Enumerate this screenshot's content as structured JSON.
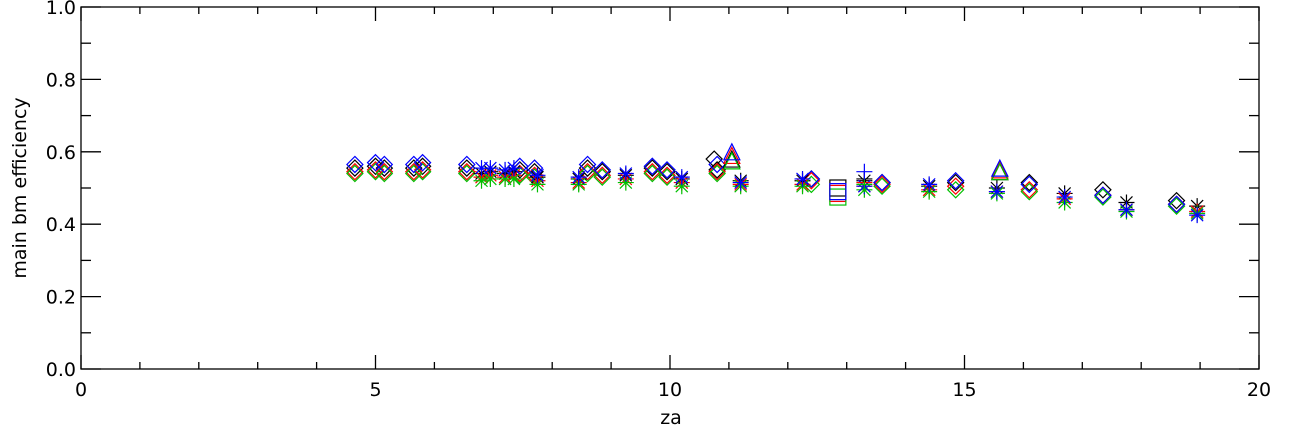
{
  "chart_data": {
    "type": "scatter",
    "title": "",
    "xlabel": "za",
    "ylabel": "main bm efficiency",
    "xlim": [
      0,
      20
    ],
    "ylim": [
      0.0,
      1.0
    ],
    "x_ticks": [
      0,
      5,
      10,
      15,
      20
    ],
    "x_tick_labels": [
      "0",
      "5",
      "10",
      "15",
      "20"
    ],
    "y_ticks": [
      0.0,
      0.2,
      0.4,
      0.6,
      0.8,
      1.0
    ],
    "y_tick_labels": [
      "0.0",
      "0.2",
      "0.4",
      "0.6",
      "0.8",
      "1.0"
    ],
    "grid": false,
    "colors": {
      "black": "#000000",
      "red": "#ff0000",
      "green": "#00c000",
      "blue": "#0000ff"
    },
    "series": [
      {
        "color": "black",
        "marker": "diamond",
        "x": [
          4.65,
          5.0,
          5.15,
          5.65,
          5.8,
          6.55,
          7.45,
          7.7,
          8.6,
          8.85,
          9.7,
          9.95,
          10.75,
          10.8,
          12.4,
          13.6,
          14.85,
          16.1,
          17.35,
          18.6
        ],
        "y": [
          0.555,
          0.56,
          0.555,
          0.555,
          0.56,
          0.555,
          0.55,
          0.545,
          0.555,
          0.545,
          0.555,
          0.545,
          0.58,
          0.55,
          0.525,
          0.515,
          0.515,
          0.515,
          0.495,
          0.465
        ]
      },
      {
        "color": "red",
        "marker": "diamond",
        "x": [
          4.65,
          5.0,
          5.15,
          5.65,
          5.8,
          6.55,
          7.45,
          7.7,
          8.6,
          8.85,
          9.7,
          9.95,
          10.8,
          12.4,
          13.6,
          14.85,
          16.1,
          17.35,
          18.6
        ],
        "y": [
          0.545,
          0.55,
          0.545,
          0.545,
          0.55,
          0.545,
          0.54,
          0.535,
          0.545,
          0.535,
          0.545,
          0.535,
          0.545,
          0.52,
          0.51,
          0.505,
          0.495,
          0.48,
          0.455
        ]
      },
      {
        "color": "green",
        "marker": "diamond",
        "x": [
          4.65,
          5.0,
          5.15,
          5.65,
          5.8,
          6.55,
          7.45,
          7.7,
          8.6,
          8.85,
          9.7,
          9.95,
          10.8,
          12.4,
          13.6,
          14.85,
          16.1,
          17.35,
          18.6
        ],
        "y": [
          0.54,
          0.545,
          0.54,
          0.54,
          0.545,
          0.54,
          0.535,
          0.53,
          0.54,
          0.53,
          0.54,
          0.53,
          0.54,
          0.51,
          0.505,
          0.495,
          0.49,
          0.475,
          0.45
        ]
      },
      {
        "color": "blue",
        "marker": "diamond",
        "x": [
          4.65,
          5.0,
          5.15,
          5.65,
          5.8,
          6.55,
          7.45,
          7.7,
          8.6,
          8.85,
          9.7,
          9.95,
          10.8,
          12.4,
          13.6,
          14.85,
          16.1,
          17.35,
          18.6
        ],
        "y": [
          0.565,
          0.57,
          0.565,
          0.565,
          0.57,
          0.565,
          0.56,
          0.555,
          0.565,
          0.55,
          0.56,
          0.55,
          0.565,
          0.525,
          0.515,
          0.52,
          0.51,
          0.48,
          0.455
        ]
      },
      {
        "color": "black",
        "marker": "asterisk",
        "x": [
          6.8,
          6.95,
          7.2,
          7.35,
          7.75,
          8.45,
          9.25,
          10.2,
          11.2,
          12.25,
          13.3,
          14.4,
          15.55,
          16.7,
          17.75,
          18.95
        ],
        "y": [
          0.54,
          0.545,
          0.54,
          0.545,
          0.53,
          0.525,
          0.535,
          0.525,
          0.52,
          0.52,
          0.52,
          0.505,
          0.5,
          0.485,
          0.46,
          0.45
        ]
      },
      {
        "color": "red",
        "marker": "asterisk",
        "x": [
          6.8,
          6.95,
          7.2,
          7.35,
          7.75,
          8.45,
          9.25,
          10.2,
          11.2,
          12.25,
          13.3,
          14.4,
          15.55,
          16.7,
          17.75,
          18.95
        ],
        "y": [
          0.53,
          0.535,
          0.53,
          0.535,
          0.52,
          0.515,
          0.525,
          0.515,
          0.51,
          0.51,
          0.505,
          0.495,
          0.49,
          0.47,
          0.44,
          0.435
        ]
      },
      {
        "color": "green",
        "marker": "asterisk",
        "x": [
          6.8,
          6.95,
          7.2,
          7.35,
          7.75,
          8.45,
          9.25,
          10.2,
          11.2,
          12.25,
          13.3,
          14.4,
          15.55,
          16.7,
          17.75,
          18.95
        ],
        "y": [
          0.52,
          0.525,
          0.525,
          0.525,
          0.51,
          0.51,
          0.515,
          0.505,
          0.505,
          0.505,
          0.495,
          0.49,
          0.485,
          0.46,
          0.435,
          0.43
        ]
      },
      {
        "color": "blue",
        "marker": "asterisk",
        "x": [
          6.8,
          6.95,
          7.2,
          7.35,
          7.75,
          8.45,
          9.25,
          10.2,
          11.2,
          12.25,
          13.3,
          14.4,
          15.55,
          16.7,
          17.75,
          18.95
        ],
        "y": [
          0.555,
          0.555,
          0.55,
          0.555,
          0.535,
          0.53,
          0.54,
          0.53,
          0.515,
          0.525,
          0.505,
          0.51,
          0.49,
          0.475,
          0.44,
          0.425
        ]
      },
      {
        "color": "black",
        "marker": "square",
        "x": [
          12.85
        ],
        "y": [
          0.5
        ]
      },
      {
        "color": "red",
        "marker": "square",
        "x": [
          12.85
        ],
        "y": [
          0.485
        ]
      },
      {
        "color": "green",
        "marker": "square",
        "x": [
          12.85
        ],
        "y": [
          0.475
        ]
      },
      {
        "color": "blue",
        "marker": "square",
        "x": [
          12.85
        ],
        "y": [
          0.49
        ]
      },
      {
        "color": "black",
        "marker": "triangle",
        "x": [
          11.05,
          15.6
        ],
        "y": [
          0.58,
          0.545
        ]
      },
      {
        "color": "red",
        "marker": "triangle",
        "x": [
          11.05,
          15.6
        ],
        "y": [
          0.59,
          0.55
        ]
      },
      {
        "color": "green",
        "marker": "triangle",
        "x": [
          11.05,
          15.6
        ],
        "y": [
          0.575,
          0.545
        ]
      },
      {
        "color": "blue",
        "marker": "triangle",
        "x": [
          11.05,
          15.6
        ],
        "y": [
          0.6,
          0.555
        ]
      },
      {
        "color": "black",
        "marker": "plus",
        "x": [
          13.3
        ],
        "y": [
          0.525
        ]
      },
      {
        "color": "red",
        "marker": "plus",
        "x": [
          13.3
        ],
        "y": [
          0.515
        ]
      },
      {
        "color": "green",
        "marker": "plus",
        "x": [
          13.3
        ],
        "y": [
          0.51
        ]
      },
      {
        "color": "blue",
        "marker": "plus",
        "x": [
          13.3
        ],
        "y": [
          0.545
        ]
      }
    ]
  }
}
